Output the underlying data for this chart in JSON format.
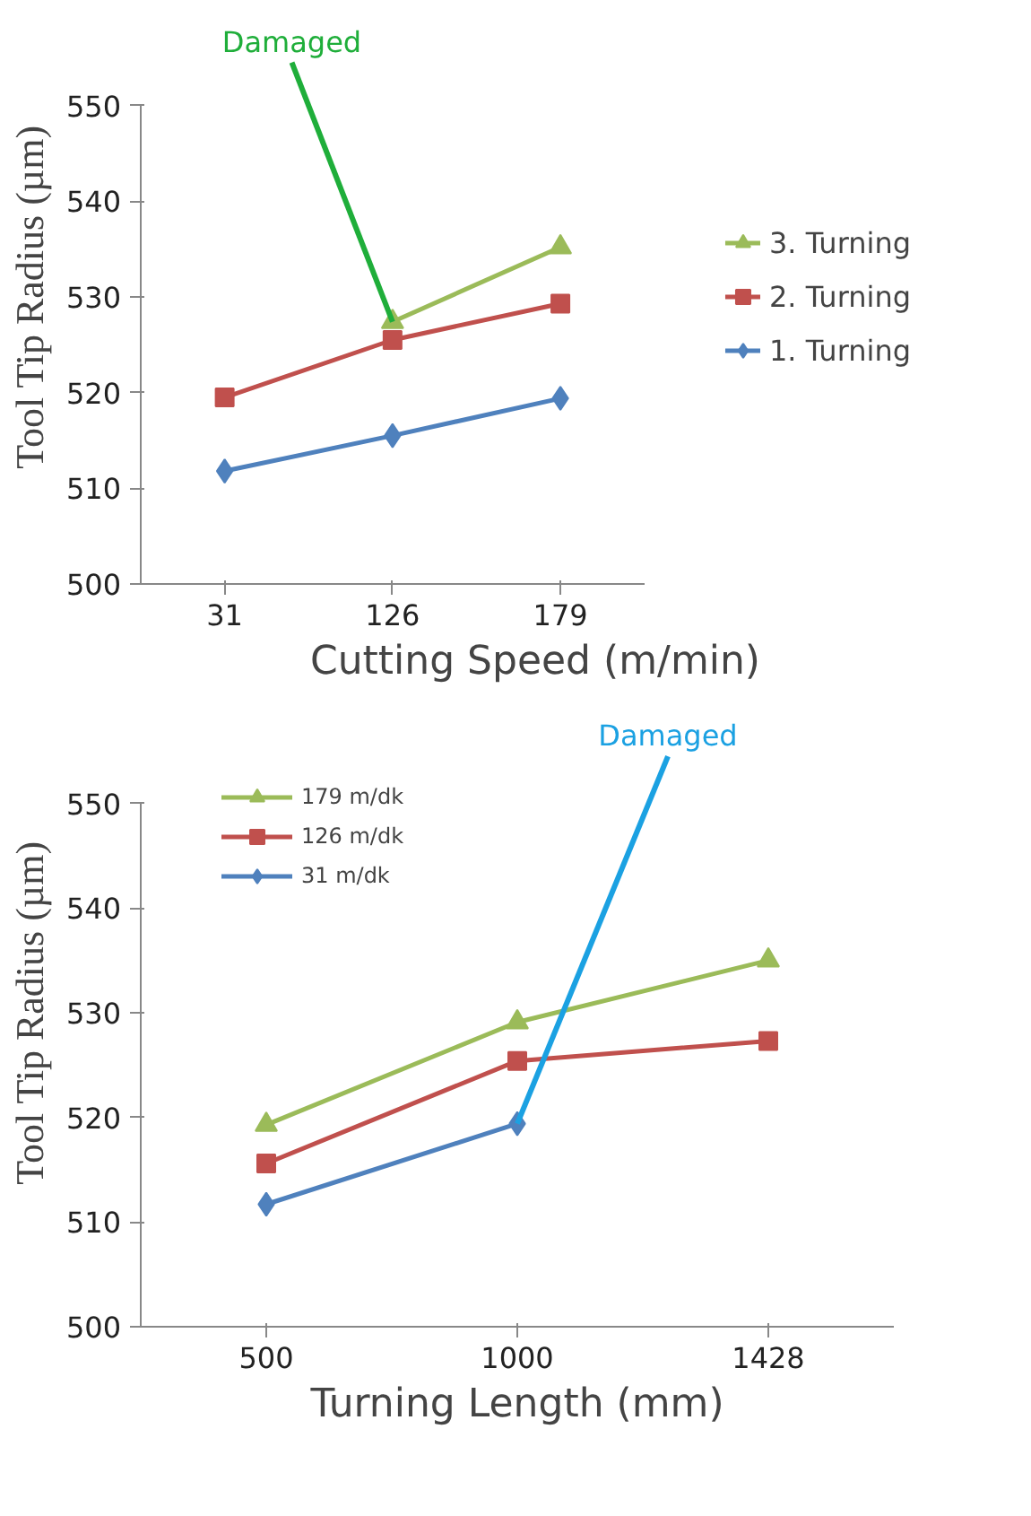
{
  "chart_data": [
    {
      "type": "line",
      "xlabel": "Cutting Speed (m/min)",
      "ylabel": "Tool Tip Radius (µm)",
      "categories": [
        "31",
        "126",
        "179"
      ],
      "ylim": [
        500,
        550
      ],
      "yticks": [
        500,
        510,
        520,
        530,
        540,
        550
      ],
      "grid": false,
      "legend": "right",
      "series": [
        {
          "name": "3. Turning",
          "color": "#9bbb59",
          "marker": "triangle",
          "values": [
            null,
            527.4,
            535.2
          ]
        },
        {
          "name": "2. Turning",
          "color": "#c0504d",
          "marker": "square",
          "values": [
            519.5,
            525.5,
            529.3
          ]
        },
        {
          "name": "1. Turning",
          "color": "#4f81bd",
          "marker": "diamond",
          "values": [
            511.8,
            515.5,
            519.4
          ]
        }
      ],
      "annotations": [
        {
          "text": "Damaged",
          "x": "126",
          "y": 527.4
        }
      ]
    },
    {
      "type": "line",
      "xlabel": "Turning Length (mm)",
      "ylabel": "Tool Tip Radius (µm)",
      "categories": [
        "500",
        "1000",
        "1428"
      ],
      "ylim": [
        500,
        550
      ],
      "yticks": [
        500,
        510,
        520,
        530,
        540,
        550
      ],
      "grid": false,
      "legend": "top left",
      "series": [
        {
          "name": "179 m/dk",
          "color": "#9bbb59",
          "marker": "triangle",
          "values": [
            519.3,
            529.1,
            535.0
          ]
        },
        {
          "name": "126 m/dk",
          "color": "#c0504d",
          "marker": "square",
          "values": [
            515.6,
            525.4,
            527.3
          ]
        },
        {
          "name": "31 m/dk",
          "color": "#4f81bd",
          "marker": "diamond",
          "values": [
            511.7,
            519.4,
            null
          ]
        }
      ],
      "annotations": [
        {
          "text": "Damaged",
          "x": "1000",
          "y": 519.4
        }
      ]
    }
  ]
}
